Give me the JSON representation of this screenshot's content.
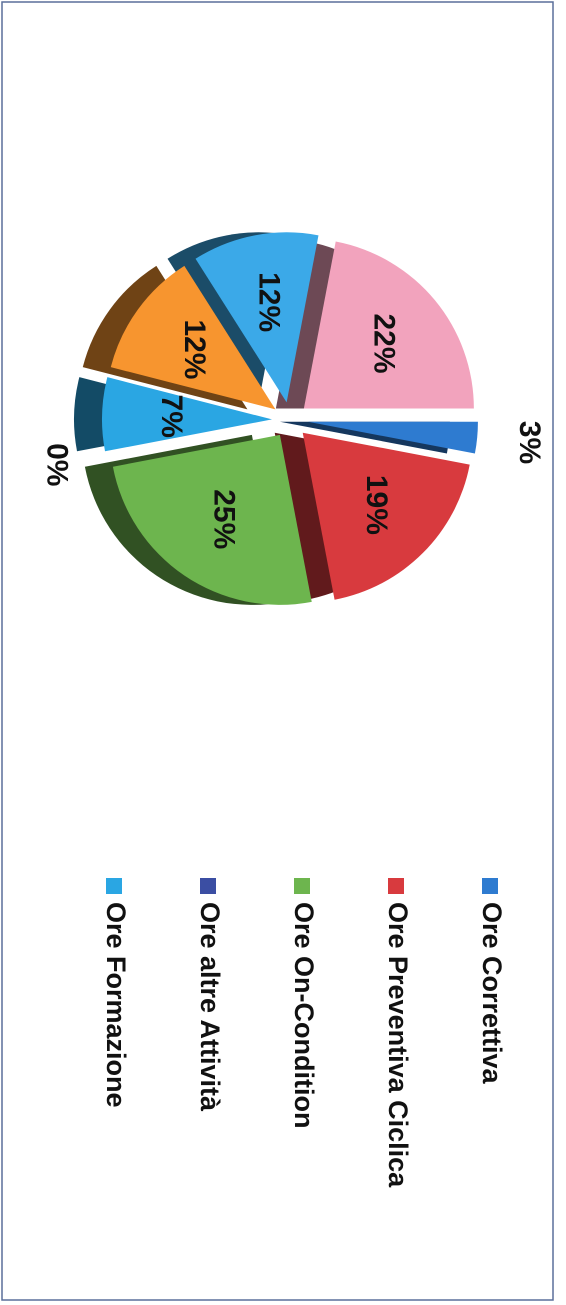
{
  "chart_data": {
    "type": "pie",
    "categories": [
      "Ore Correttiva",
      "Ore Preventiva Ciclica",
      "Ore On-Condition",
      "Ore altre Attività",
      "Ore Formazione",
      null,
      null,
      null
    ],
    "values": [
      3,
      19,
      25,
      0,
      7,
      12,
      12,
      22
    ],
    "value_labels": [
      "3%",
      "19%",
      "25%",
      "0%",
      "7%",
      "12%",
      "12%",
      "22%"
    ],
    "colors": [
      "#2e7bd0",
      "#d83a3e",
      "#6db54e",
      "#3b4ea3",
      "#2aa6e3",
      "#f7952f",
      "#3ba9e8",
      "#f2a3bd"
    ],
    "legend": "right"
  }
}
